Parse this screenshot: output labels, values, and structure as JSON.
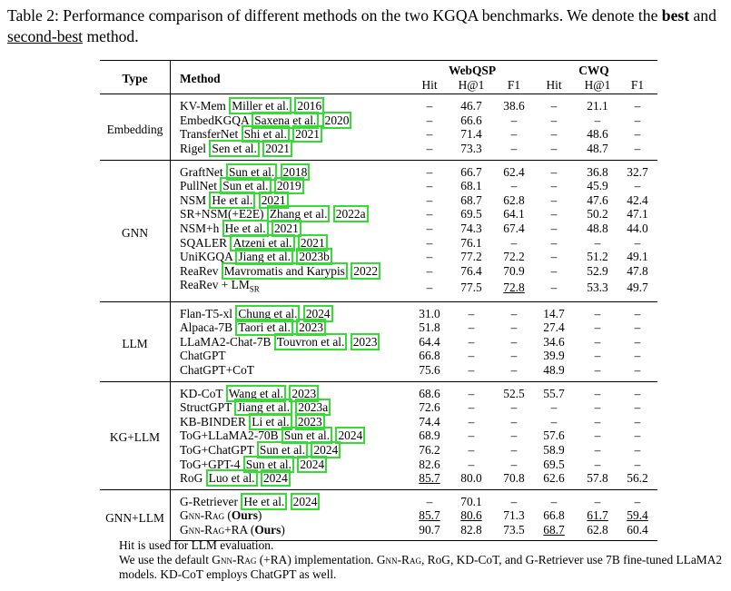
{
  "caption": {
    "prefix": "Table 2: Performance comparison of different methods on the two KGQA benchmarks. We denote the ",
    "best": "best",
    "mid": " and ",
    "second": "second-best",
    "suffix": " method."
  },
  "headers": {
    "type": "Type",
    "method": "Method",
    "webqsp": "WebQSP",
    "cwq": "CWQ",
    "sub": [
      "Hit",
      "H@1",
      "F1",
      "Hit",
      "H@1",
      "F1"
    ]
  },
  "groups": [
    {
      "type": "Embedding",
      "rows": [
        {
          "method": "KV-Mem",
          "cite": [
            "Miller et al.",
            "2016"
          ],
          "values": [
            "–",
            "46.7",
            "38.6",
            "–",
            "21.1",
            "–"
          ]
        },
        {
          "method": "EmbedKGQA",
          "cite": [
            "Saxena et al.",
            "2020"
          ],
          "values": [
            "–",
            "66.6",
            "–",
            "–",
            "–",
            "–"
          ]
        },
        {
          "method": "TransferNet",
          "cite": [
            "Shi et al.",
            "2021"
          ],
          "values": [
            "–",
            "71.4",
            "–",
            "–",
            "48.6",
            "–"
          ]
        },
        {
          "method": "Rigel",
          "cite": [
            "Sen et al.",
            "2021"
          ],
          "values": [
            "–",
            "73.3",
            "–",
            "–",
            "48.7",
            "–"
          ]
        }
      ]
    },
    {
      "type": "GNN",
      "rows": [
        {
          "method": "GraftNet",
          "cite": [
            "Sun et al.",
            "2018"
          ],
          "values": [
            "–",
            "66.7",
            "62.4",
            "–",
            "36.8",
            "32.7"
          ]
        },
        {
          "method": "PullNet",
          "cite": [
            "Sun et al.",
            "2019"
          ],
          "values": [
            "–",
            "68.1",
            "–",
            "–",
            "45.9",
            "–"
          ]
        },
        {
          "method": "NSM",
          "cite": [
            "He et al.",
            "2021"
          ],
          "values": [
            "–",
            "68.7",
            "62.8",
            "–",
            "47.6",
            "42.4"
          ]
        },
        {
          "method": "SR+NSM(+E2E)",
          "cite": [
            "Zhang et al.",
            "2022a"
          ],
          "values": [
            "–",
            "69.5",
            "64.1",
            "–",
            "50.2",
            "47.1"
          ]
        },
        {
          "method": "NSM+h",
          "cite": [
            "He et al.",
            "2021"
          ],
          "values": [
            "–",
            "74.3",
            "67.4",
            "–",
            "48.8",
            "44.0"
          ]
        },
        {
          "method": "SQALER",
          "cite": [
            "Atzeni et al.",
            "2021"
          ],
          "values": [
            "–",
            "76.1",
            "–",
            "–",
            "–",
            "–"
          ]
        },
        {
          "method": "UniKGQA",
          "cite": [
            "Jiang et al.",
            "2023b"
          ],
          "values": [
            "–",
            "77.2",
            "72.2",
            "–",
            "51.2",
            "49.1"
          ]
        },
        {
          "method": "ReaRev",
          "cite": [
            "Mavromatis and Karypis",
            "2022"
          ],
          "values": [
            "–",
            "76.4",
            "70.9",
            "–",
            "52.9",
            "47.8"
          ]
        },
        {
          "method": "ReaRev + LM",
          "sub": "SR",
          "cite": null,
          "values": [
            "–",
            "77.5",
            "72.8",
            "–",
            "53.3",
            "49.7"
          ],
          "ul": [
            2
          ]
        }
      ]
    },
    {
      "type": "LLM",
      "rows": [
        {
          "method": "Flan-T5-xl",
          "cite": [
            "Chung et al.",
            "2024"
          ],
          "values": [
            "31.0",
            "–",
            "–",
            "14.7",
            "–",
            "–"
          ]
        },
        {
          "method": "Alpaca-7B",
          "cite": [
            "Taori et al.",
            "2023"
          ],
          "values": [
            "51.8",
            "–",
            "–",
            "27.4",
            "–",
            "–"
          ]
        },
        {
          "method": "LLaMA2-Chat-7B",
          "cite": [
            "Touvron et al.",
            "2023"
          ],
          "values": [
            "64.4",
            "–",
            "–",
            "34.6",
            "–",
            "–"
          ]
        },
        {
          "method": "ChatGPT",
          "cite": null,
          "values": [
            "66.8",
            "–",
            "–",
            "39.9",
            "–",
            "–"
          ]
        },
        {
          "method": "ChatGPT+CoT",
          "cite": null,
          "values": [
            "75.6",
            "–",
            "–",
            "48.9",
            "–",
            "–"
          ]
        }
      ]
    },
    {
      "type": "KG+LLM",
      "rows": [
        {
          "method": "KD-CoT",
          "cite": [
            "Wang et al.",
            "2023"
          ],
          "values": [
            "68.6",
            "–",
            "52.5",
            "55.7",
            "–",
            "–"
          ]
        },
        {
          "method": "StructGPT",
          "cite": [
            "Jiang et al.",
            "2023a"
          ],
          "values": [
            "72.6",
            "–",
            "–",
            "–",
            "–",
            "–"
          ]
        },
        {
          "method": "KB-BINDER",
          "cite": [
            "Li et al.",
            "2023"
          ],
          "values": [
            "74.4",
            "–",
            "–",
            "–",
            "–",
            "–"
          ]
        },
        {
          "method": "ToG+LLaMA2-70B",
          "cite": [
            "Sun et al.",
            "2024"
          ],
          "values": [
            "68.9",
            "–",
            "–",
            "57.6",
            "–",
            "–"
          ]
        },
        {
          "method": "ToG+ChatGPT",
          "cite": [
            "Sun et al.",
            "2024"
          ],
          "values": [
            "76.2",
            "–",
            "–",
            "58.9",
            "–",
            "–"
          ]
        },
        {
          "method": "ToG+GPT-4",
          "cite": [
            "Sun et al.",
            "2024"
          ],
          "values": [
            "82.6",
            "–",
            "–",
            "69.5",
            "–",
            "–"
          ],
          "bold": [
            3
          ]
        },
        {
          "method": "RoG",
          "cite": [
            "Luo et al.",
            "2024"
          ],
          "values": [
            "85.7",
            "80.0",
            "70.8",
            "62.6",
            "57.8",
            "56.2"
          ],
          "ul": [
            0
          ]
        }
      ]
    },
    {
      "type": "GNN+LLM",
      "rows": [
        {
          "method": "G-Retriever",
          "cite": [
            "He et al.",
            "2024"
          ],
          "values": [
            "–",
            "70.1",
            "–",
            "–",
            "–",
            "–"
          ]
        },
        {
          "method": "GNN-RAG",
          "suffix": "Ours",
          "cite": null,
          "values": [
            "85.7",
            "80.6",
            "71.3",
            "66.8",
            "61.7",
            "59.4"
          ],
          "ul": [
            0,
            1,
            4,
            5
          ]
        },
        {
          "method": "GNN-RAG+RA",
          "suffix": "Ours",
          "cite": null,
          "values": [
            "90.7",
            "82.8",
            "73.5",
            "68.7",
            "62.8",
            "60.4"
          ],
          "bold": [
            0,
            1,
            2,
            4,
            5
          ],
          "ul": [
            3
          ]
        }
      ]
    }
  ],
  "notes": [
    "Hit is used for LLM evaluation.",
    "We use the default GNN-RAG (+RA) implementation. GNN-RAG, RoG, KD-CoT, and G-Retriever use 7B fine-tuned LLaMA2 models. KD-CoT employs ChatGPT as well."
  ]
}
